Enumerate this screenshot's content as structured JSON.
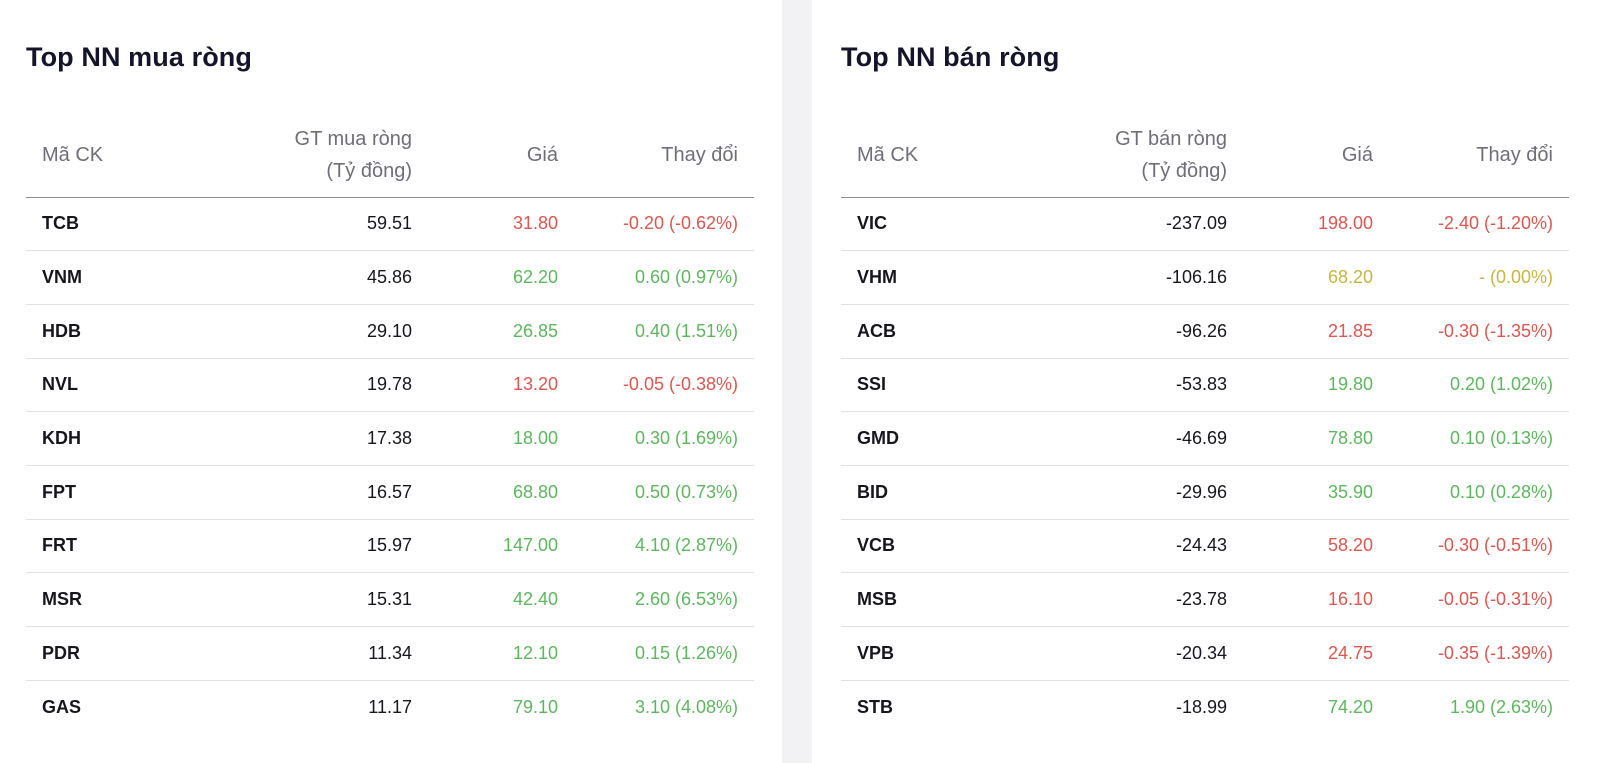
{
  "colors": {
    "up": "#5cb85c",
    "down": "#e0554e",
    "ref": "#c9b53f"
  },
  "buy": {
    "title": "Top NN mua ròng",
    "headers": {
      "symbol": "Mã CK",
      "value_line1": "GT mua ròng",
      "value_line2": "(Tỷ đồng)",
      "price": "Giá",
      "change": "Thay đổi"
    },
    "rows": [
      {
        "symbol": "TCB",
        "value": "59.51",
        "price": "31.80",
        "change": "-0.20 (-0.62%)",
        "trend": "down"
      },
      {
        "symbol": "VNM",
        "value": "45.86",
        "price": "62.20",
        "change": "0.60 (0.97%)",
        "trend": "up"
      },
      {
        "symbol": "HDB",
        "value": "29.10",
        "price": "26.85",
        "change": "0.40 (1.51%)",
        "trend": "up"
      },
      {
        "symbol": "NVL",
        "value": "19.78",
        "price": "13.20",
        "change": "-0.05 (-0.38%)",
        "trend": "down"
      },
      {
        "symbol": "KDH",
        "value": "17.38",
        "price": "18.00",
        "change": "0.30 (1.69%)",
        "trend": "up"
      },
      {
        "symbol": "FPT",
        "value": "16.57",
        "price": "68.80",
        "change": "0.50 (0.73%)",
        "trend": "up"
      },
      {
        "symbol": "FRT",
        "value": "15.97",
        "price": "147.00",
        "change": "4.10 (2.87%)",
        "trend": "up"
      },
      {
        "symbol": "MSR",
        "value": "15.31",
        "price": "42.40",
        "change": "2.60 (6.53%)",
        "trend": "up"
      },
      {
        "symbol": "PDR",
        "value": "11.34",
        "price": "12.10",
        "change": "0.15 (1.26%)",
        "trend": "up"
      },
      {
        "symbol": "GAS",
        "value": "11.17",
        "price": "79.10",
        "change": "3.10 (4.08%)",
        "trend": "up"
      }
    ]
  },
  "sell": {
    "title": "Top NN bán ròng",
    "headers": {
      "symbol": "Mã CK",
      "value_line1": "GT bán ròng",
      "value_line2": "(Tỷ đồng)",
      "price": "Giá",
      "change": "Thay đổi"
    },
    "rows": [
      {
        "symbol": "VIC",
        "value": "-237.09",
        "price": "198.00",
        "change": "-2.40 (-1.20%)",
        "trend": "down"
      },
      {
        "symbol": "VHM",
        "value": "-106.16",
        "price": "68.20",
        "change": "- (0.00%)",
        "trend": "ref"
      },
      {
        "symbol": "ACB",
        "value": "-96.26",
        "price": "21.85",
        "change": "-0.30 (-1.35%)",
        "trend": "down"
      },
      {
        "symbol": "SSI",
        "value": "-53.83",
        "price": "19.80",
        "change": "0.20 (1.02%)",
        "trend": "up"
      },
      {
        "symbol": "GMD",
        "value": "-46.69",
        "price": "78.80",
        "change": "0.10 (0.13%)",
        "trend": "up"
      },
      {
        "symbol": "BID",
        "value": "-29.96",
        "price": "35.90",
        "change": "0.10 (0.28%)",
        "trend": "up"
      },
      {
        "symbol": "VCB",
        "value": "-24.43",
        "price": "58.20",
        "change": "-0.30 (-0.51%)",
        "trend": "down"
      },
      {
        "symbol": "MSB",
        "value": "-23.78",
        "price": "16.10",
        "change": "-0.05 (-0.31%)",
        "trend": "down"
      },
      {
        "symbol": "VPB",
        "value": "-20.34",
        "price": "24.75",
        "change": "-0.35 (-1.39%)",
        "trend": "down"
      },
      {
        "symbol": "STB",
        "value": "-18.99",
        "price": "74.20",
        "change": "1.90 (2.63%)",
        "trend": "up"
      }
    ]
  }
}
